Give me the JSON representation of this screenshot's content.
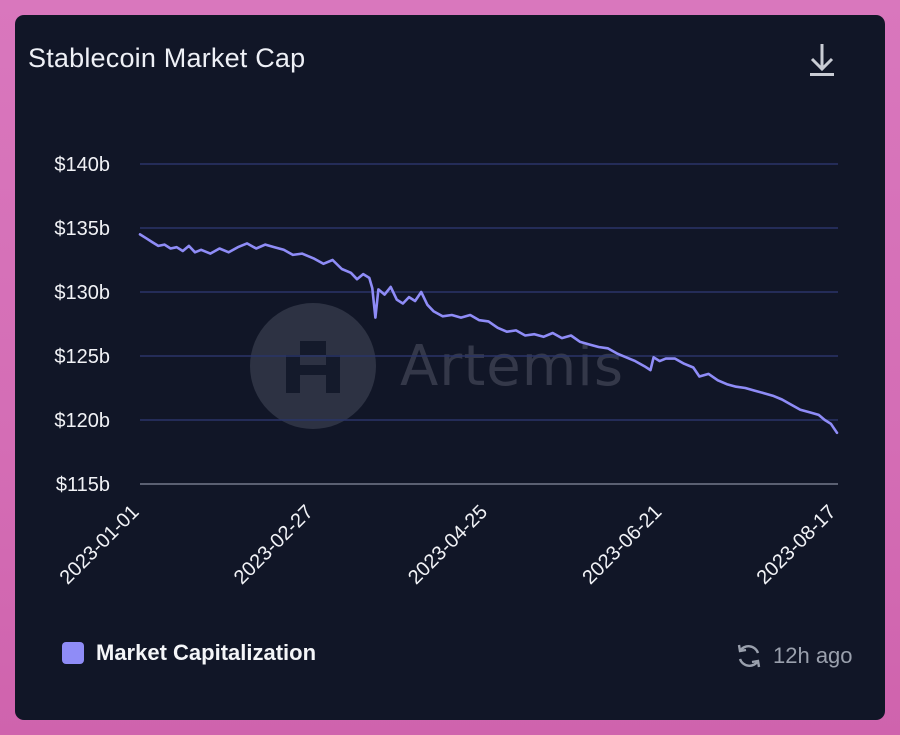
{
  "card": {
    "title": "Stablecoin Market Cap",
    "download_icon": "download-icon"
  },
  "watermark": {
    "text": "Artemis",
    "logo_icon": "artemis-logo-icon"
  },
  "legend": {
    "label": "Market Capitalization",
    "color": "#8f8cf7"
  },
  "status": {
    "refresh_icon": "refresh-icon",
    "text": "12h ago"
  },
  "chart_data": {
    "type": "line",
    "title": "Stablecoin Market Cap",
    "xlabel": "",
    "ylabel": "",
    "ylim": [
      115,
      140
    ],
    "yticks": [
      "$115b",
      "$120b",
      "$125b",
      "$130b",
      "$135b",
      "$140b"
    ],
    "xticks": [
      "2023-01-01",
      "2023-02-27",
      "2023-04-25",
      "2023-06-21",
      "2023-08-17"
    ],
    "grid": true,
    "legend_position": "bottom-left",
    "series": [
      {
        "name": "Market Capitalization",
        "color": "#8f8cf7",
        "points": [
          [
            "2023-01-01",
            134.5
          ],
          [
            "2023-01-03",
            134.2
          ],
          [
            "2023-01-05",
            133.9
          ],
          [
            "2023-01-07",
            133.6
          ],
          [
            "2023-01-09",
            133.7
          ],
          [
            "2023-01-11",
            133.4
          ],
          [
            "2023-01-13",
            133.5
          ],
          [
            "2023-01-15",
            133.2
          ],
          [
            "2023-01-17",
            133.6
          ],
          [
            "2023-01-19",
            133.1
          ],
          [
            "2023-01-21",
            133.3
          ],
          [
            "2023-01-24",
            133.0
          ],
          [
            "2023-01-27",
            133.4
          ],
          [
            "2023-01-30",
            133.1
          ],
          [
            "2023-02-02",
            133.5
          ],
          [
            "2023-02-05",
            133.8
          ],
          [
            "2023-02-08",
            133.4
          ],
          [
            "2023-02-11",
            133.7
          ],
          [
            "2023-02-14",
            133.5
          ],
          [
            "2023-02-17",
            133.3
          ],
          [
            "2023-02-20",
            132.9
          ],
          [
            "2023-02-23",
            133.0
          ],
          [
            "2023-02-27",
            132.6
          ],
          [
            "2023-03-02",
            132.2
          ],
          [
            "2023-03-05",
            132.5
          ],
          [
            "2023-03-08",
            131.8
          ],
          [
            "2023-03-11",
            131.5
          ],
          [
            "2023-03-13",
            131.0
          ],
          [
            "2023-03-15",
            131.4
          ],
          [
            "2023-03-17",
            131.1
          ],
          [
            "2023-03-18",
            130.3
          ],
          [
            "2023-03-19",
            128.0
          ],
          [
            "2023-03-20",
            130.2
          ],
          [
            "2023-03-22",
            129.8
          ],
          [
            "2023-03-24",
            130.4
          ],
          [
            "2023-03-26",
            129.4
          ],
          [
            "2023-03-28",
            129.1
          ],
          [
            "2023-03-30",
            129.6
          ],
          [
            "2023-04-01",
            129.3
          ],
          [
            "2023-04-03",
            130.0
          ],
          [
            "2023-04-05",
            129.0
          ],
          [
            "2023-04-07",
            128.5
          ],
          [
            "2023-04-10",
            128.1
          ],
          [
            "2023-04-13",
            128.2
          ],
          [
            "2023-04-16",
            128.0
          ],
          [
            "2023-04-19",
            128.2
          ],
          [
            "2023-04-22",
            127.8
          ],
          [
            "2023-04-25",
            127.7
          ],
          [
            "2023-04-28",
            127.2
          ],
          [
            "2023-05-01",
            126.9
          ],
          [
            "2023-05-04",
            127.0
          ],
          [
            "2023-05-07",
            126.6
          ],
          [
            "2023-05-10",
            126.7
          ],
          [
            "2023-05-13",
            126.5
          ],
          [
            "2023-05-16",
            126.8
          ],
          [
            "2023-05-19",
            126.4
          ],
          [
            "2023-05-22",
            126.6
          ],
          [
            "2023-05-25",
            126.1
          ],
          [
            "2023-05-28",
            125.9
          ],
          [
            "2023-05-31",
            125.7
          ],
          [
            "2023-06-03",
            125.6
          ],
          [
            "2023-06-06",
            125.2
          ],
          [
            "2023-06-09",
            124.9
          ],
          [
            "2023-06-12",
            124.6
          ],
          [
            "2023-06-15",
            124.2
          ],
          [
            "2023-06-17",
            123.9
          ],
          [
            "2023-06-18",
            124.9
          ],
          [
            "2023-06-20",
            124.6
          ],
          [
            "2023-06-22",
            124.8
          ],
          [
            "2023-06-25",
            124.8
          ],
          [
            "2023-06-28",
            124.4
          ],
          [
            "2023-07-01",
            124.1
          ],
          [
            "2023-07-03",
            123.4
          ],
          [
            "2023-07-06",
            123.6
          ],
          [
            "2023-07-09",
            123.1
          ],
          [
            "2023-07-12",
            122.8
          ],
          [
            "2023-07-15",
            122.6
          ],
          [
            "2023-07-18",
            122.5
          ],
          [
            "2023-07-21",
            122.3
          ],
          [
            "2023-07-24",
            122.1
          ],
          [
            "2023-07-27",
            121.9
          ],
          [
            "2023-07-30",
            121.6
          ],
          [
            "2023-08-02",
            121.2
          ],
          [
            "2023-08-05",
            120.8
          ],
          [
            "2023-08-08",
            120.6
          ],
          [
            "2023-08-11",
            120.4
          ],
          [
            "2023-08-13",
            120.0
          ],
          [
            "2023-08-15",
            119.7
          ],
          [
            "2023-08-17",
            119.0
          ]
        ]
      }
    ]
  }
}
